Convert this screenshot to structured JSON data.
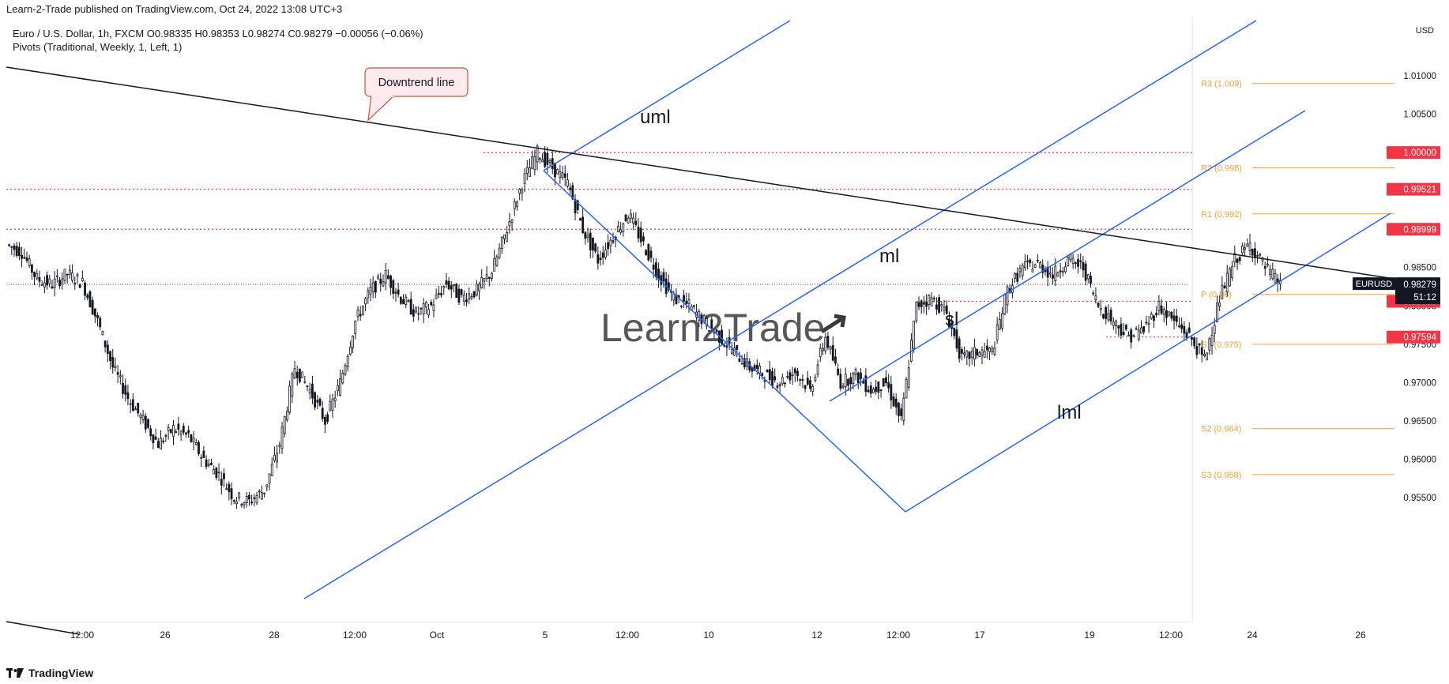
{
  "header": {
    "published": "Learn-2-Trade published on TradingView.com, Oct 24, 2022 13:08 UTC+3",
    "symbol_line": "Euro / U.S. Dollar, 1h, FXCM  O0.98335  H0.98353  L0.98274  C0.98279  −0.00056 (−0.06%)",
    "pivots_line": "Pivots (Traditional, Weekly, 1, Left, 1)"
  },
  "footer": {
    "brand": "TradingView"
  },
  "chart_data": {
    "type": "line",
    "currency": "USD",
    "ylim": [
      0.95,
      1.016
    ],
    "y_ticks": [
      "1.01000",
      "1.00500",
      "1.00000",
      "0.99500",
      "0.99000",
      "0.98500",
      "0.98000",
      "0.97500",
      "0.97000",
      "0.96500",
      "0.96000",
      "0.95500"
    ],
    "y_tick_values": [
      1.01,
      1.005,
      1.0,
      0.995,
      0.99,
      0.985,
      0.98,
      0.975,
      0.97,
      0.965,
      0.96,
      0.955
    ],
    "x_ticks": [
      "12:00",
      "26",
      "28",
      "12:00",
      "Oct",
      "5",
      "12:00",
      "10",
      "12",
      "12:00",
      "17",
      "19",
      "12:00",
      "24",
      "26"
    ],
    "x_tick_index": [
      1,
      2,
      3,
      4,
      5,
      6,
      7,
      8,
      9,
      10,
      11,
      12,
      13,
      14,
      15
    ],
    "price_series": {
      "name": "EURUSD",
      "values": [
        0.988,
        0.987,
        0.9835,
        0.9828,
        0.9842,
        0.983,
        0.978,
        0.972,
        0.968,
        0.965,
        0.962,
        0.964,
        0.963,
        0.96,
        0.958,
        0.955,
        0.9545,
        0.956,
        0.962,
        0.972,
        0.969,
        0.965,
        0.97,
        0.978,
        0.982,
        0.984,
        0.981,
        0.979,
        0.98,
        0.983,
        0.981,
        0.982,
        0.9845,
        0.99,
        0.996,
        1.0,
        0.998,
        0.996,
        0.99,
        0.986,
        0.989,
        0.992,
        0.988,
        0.984,
        0.981,
        0.98,
        0.978,
        0.976,
        0.974,
        0.972,
        0.971,
        0.97,
        0.9715,
        0.969,
        0.976,
        0.97,
        0.971,
        0.969,
        0.97,
        0.965,
        0.98,
        0.981,
        0.979,
        0.973,
        0.974,
        0.974,
        0.982,
        0.985,
        0.9855,
        0.984,
        0.986,
        0.985,
        0.98,
        0.978,
        0.976,
        0.977,
        0.98,
        0.978,
        0.976,
        0.973,
        0.981,
        0.986,
        0.988,
        0.985,
        0.9828
      ]
    },
    "horizontal_levels": [
      {
        "value": 1.0,
        "label": "1.00000"
      },
      {
        "value": 0.99521,
        "label": "0.99521"
      },
      {
        "value": 0.98999,
        "label": "0.98999"
      },
      {
        "value": 0.9806,
        "label": "0.98060"
      },
      {
        "value": 0.97594,
        "label": "0.97594"
      }
    ],
    "current_price": {
      "symbol": "EURUSD",
      "value": 0.98279,
      "label": "0.98279",
      "countdown": "51:12"
    },
    "pivots": [
      {
        "label": "R3 (1.009)",
        "value": 1.009
      },
      {
        "label": "R2 (0.998)",
        "value": 0.998
      },
      {
        "label": "R1 (0.992)",
        "value": 0.992
      },
      {
        "label": "P (0.98)",
        "value": 0.9815
      },
      {
        "label": "S1 (0.975)",
        "value": 0.975
      },
      {
        "label": "S2 (0.964)",
        "value": 0.964
      },
      {
        "label": "S3 (0.958)",
        "value": 0.958
      }
    ],
    "annotations": {
      "downtrend_callout": "Downtrend line",
      "uml": "uml",
      "ml": "ml",
      "sl": "sl",
      "lml": "lml",
      "watermark": "Learn2Trade"
    },
    "colors": {
      "candles": "#131722",
      "levels": "#f23645",
      "pivots": "#f7a23c",
      "channel": "#2962ff",
      "trend": "#131722",
      "callout_bg": "#ffebee",
      "callout_border": "#c8553d"
    }
  }
}
